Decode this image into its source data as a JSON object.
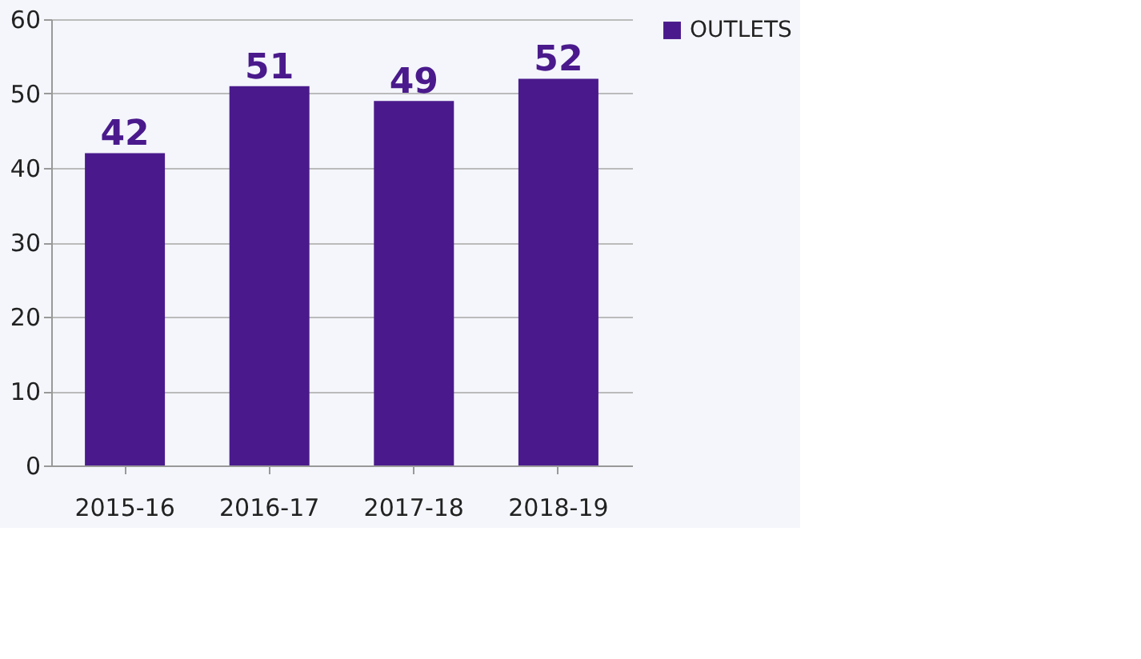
{
  "chart_data": {
    "type": "bar",
    "categories": [
      "2015-16",
      "2016-17",
      "2017-18",
      "2018-19"
    ],
    "series": [
      {
        "name": "OUTLETS",
        "color": "#4a1a8c",
        "values": [
          42,
          51,
          49,
          52
        ]
      }
    ],
    "ylim": [
      0,
      60
    ],
    "yticks": [
      0,
      10,
      20,
      30,
      40,
      50,
      60
    ],
    "grid": "y",
    "legend": "right",
    "data_labels": true
  }
}
